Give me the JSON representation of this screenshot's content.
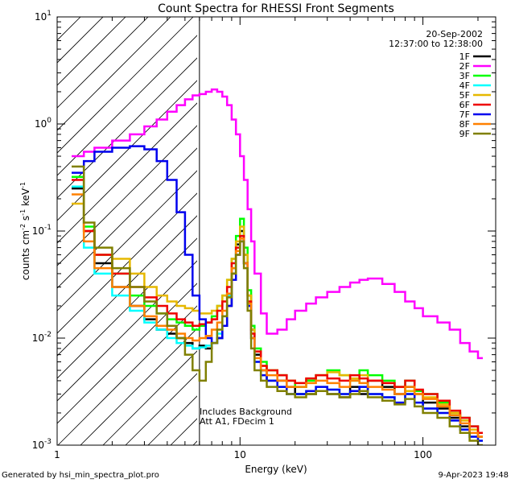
{
  "chart_data": {
    "type": "line",
    "title": "Count Spectra for RHESSI Front Segments",
    "xlabel": "Energy (keV)",
    "ylabel": "counts cm",
    "ylabel_super1": "-2",
    "ylabel_mid": " s",
    "ylabel_super2": "-1",
    "ylabel_end": " keV",
    "ylabel_super3": "-1",
    "x_scale": "log",
    "y_scale": "log",
    "xlim": [
      1,
      250
    ],
    "ylim": [
      0.001,
      10
    ],
    "x_ticks": [
      {
        "value": 1,
        "label": "1"
      },
      {
        "value": 10,
        "label": "10"
      },
      {
        "value": 100,
        "label": "100"
      }
    ],
    "y_ticks": [
      {
        "value": 0.001,
        "base": "10",
        "exp": "-3"
      },
      {
        "value": 0.01,
        "base": "10",
        "exp": "-2"
      },
      {
        "value": 0.1,
        "base": "10",
        "exp": "-1"
      },
      {
        "value": 1,
        "base": "10",
        "exp": "0"
      },
      {
        "value": 10,
        "base": "10",
        "exp": "1"
      }
    ],
    "hatched_region_max_energy": 6,
    "annotation_date": "20-Sep-2002",
    "annotation_time": "12:37:00 to 12:38:00",
    "annotation_bg": "Includes Background",
    "annotation_att": "Att A1, FDecim 1",
    "series": [
      {
        "name": "1F",
        "color": "#000000",
        "energies": [
          1.2,
          1.4,
          1.6,
          2.0,
          2.5,
          3.0,
          3.5,
          4.0,
          4.5,
          5.0,
          5.5,
          6.0,
          6.5,
          7.0,
          7.5,
          8.0,
          8.5,
          9.0,
          9.5,
          10.0,
          10.5,
          11.0,
          11.5,
          12.0,
          13.0,
          14.0,
          16.0,
          18.0,
          20.0,
          23.0,
          26.0,
          30.0,
          35.0,
          40.0,
          45.0,
          50.0,
          60.0,
          70.0,
          80.0,
          90.0,
          100.0,
          120.0,
          140.0,
          160.0,
          180.0,
          200.0
        ],
        "values": [
          0.25,
          0.1,
          0.05,
          0.03,
          0.02,
          0.015,
          0.012,
          0.011,
          0.01,
          0.009,
          0.008,
          0.0085,
          0.008,
          0.009,
          0.01,
          0.013,
          0.02,
          0.04,
          0.075,
          0.1,
          0.06,
          0.025,
          0.012,
          0.007,
          0.005,
          0.004,
          0.004,
          0.0035,
          0.003,
          0.003,
          0.0032,
          0.003,
          0.0028,
          0.0035,
          0.003,
          0.004,
          0.0035,
          0.003,
          0.0035,
          0.003,
          0.0025,
          0.0022,
          0.0018,
          0.0015,
          0.0013,
          0.0012
        ]
      },
      {
        "name": "2F",
        "color": "#ff00ff",
        "energies": [
          1.2,
          1.4,
          1.6,
          2.0,
          2.5,
          3.0,
          3.5,
          4.0,
          4.5,
          5.0,
          5.5,
          6.0,
          6.5,
          7.0,
          7.5,
          8.0,
          8.5,
          9.0,
          9.5,
          10.0,
          10.5,
          11.0,
          11.5,
          12.0,
          13.0,
          14.0,
          16.0,
          18.0,
          20.0,
          23.0,
          26.0,
          30.0,
          35.0,
          40.0,
          45.0,
          50.0,
          60.0,
          70.0,
          80.0,
          90.0,
          100.0,
          120.0,
          140.0,
          160.0,
          180.0,
          200.0
        ],
        "values": [
          0.5,
          0.55,
          0.6,
          0.7,
          0.8,
          0.95,
          1.1,
          1.3,
          1.5,
          1.7,
          1.85,
          1.9,
          2.0,
          2.1,
          2.0,
          1.8,
          1.5,
          1.1,
          0.8,
          0.5,
          0.3,
          0.16,
          0.08,
          0.04,
          0.017,
          0.011,
          0.012,
          0.015,
          0.018,
          0.021,
          0.024,
          0.027,
          0.03,
          0.033,
          0.035,
          0.036,
          0.032,
          0.027,
          0.022,
          0.019,
          0.016,
          0.014,
          0.012,
          0.009,
          0.0075,
          0.0065
        ]
      },
      {
        "name": "3F",
        "color": "#00ff00",
        "energies": [
          1.2,
          1.4,
          1.6,
          2.0,
          2.5,
          3.0,
          3.5,
          4.0,
          4.5,
          5.0,
          5.5,
          6.0,
          6.5,
          7.0,
          7.5,
          8.0,
          8.5,
          9.0,
          9.5,
          10.0,
          10.5,
          11.0,
          11.5,
          12.0,
          13.0,
          14.0,
          16.0,
          18.0,
          20.0,
          23.0,
          26.0,
          30.0,
          35.0,
          40.0,
          45.0,
          50.0,
          60.0,
          70.0,
          80.0,
          90.0,
          100.0,
          120.0,
          140.0,
          160.0,
          180.0,
          200.0
        ],
        "values": [
          0.32,
          0.11,
          0.06,
          0.04,
          0.025,
          0.02,
          0.017,
          0.015,
          0.014,
          0.013,
          0.012,
          0.013,
          0.014,
          0.016,
          0.02,
          0.025,
          0.035,
          0.055,
          0.09,
          0.13,
          0.07,
          0.028,
          0.013,
          0.008,
          0.006,
          0.005,
          0.0045,
          0.004,
          0.0035,
          0.004,
          0.0045,
          0.005,
          0.0045,
          0.004,
          0.005,
          0.0045,
          0.004,
          0.0035,
          0.004,
          0.0032,
          0.003,
          0.0025,
          0.002,
          0.0018,
          0.0015,
          0.0013
        ]
      },
      {
        "name": "4F",
        "color": "#00ffff",
        "energies": [
          1.2,
          1.4,
          1.6,
          2.0,
          2.5,
          3.0,
          3.5,
          4.0,
          4.5,
          5.0,
          5.5,
          6.0,
          6.5,
          7.0,
          7.5,
          8.0,
          8.5,
          9.0,
          9.5,
          10.0,
          10.5,
          11.0,
          11.5,
          12.0,
          13.0,
          14.0,
          16.0,
          18.0,
          20.0,
          23.0,
          26.0,
          30.0,
          35.0,
          40.0,
          45.0,
          50.0,
          60.0,
          70.0,
          80.0,
          90.0,
          100.0,
          120.0,
          140.0,
          160.0,
          180.0,
          200.0
        ],
        "values": [
          0.26,
          0.07,
          0.04,
          0.025,
          0.018,
          0.014,
          0.012,
          0.01,
          0.009,
          0.0085,
          0.008,
          0.0082,
          0.0085,
          0.009,
          0.011,
          0.016,
          0.025,
          0.045,
          0.07,
          0.09,
          0.05,
          0.02,
          0.01,
          0.006,
          0.0045,
          0.004,
          0.0035,
          0.003,
          0.003,
          0.0032,
          0.0035,
          0.0033,
          0.003,
          0.0032,
          0.0035,
          0.003,
          0.0028,
          0.0025,
          0.003,
          0.0025,
          0.0022,
          0.002,
          0.0017,
          0.0014,
          0.0012,
          0.0011
        ]
      },
      {
        "name": "5F",
        "color": "#e6b800",
        "energies": [
          1.2,
          1.4,
          1.6,
          2.0,
          2.5,
          3.0,
          3.5,
          4.0,
          4.5,
          5.0,
          5.5,
          6.0,
          6.5,
          7.0,
          7.5,
          8.0,
          8.5,
          9.0,
          9.5,
          10.0,
          10.5,
          11.0,
          11.5,
          12.0,
          13.0,
          14.0,
          16.0,
          18.0,
          20.0,
          23.0,
          26.0,
          30.0,
          35.0,
          40.0,
          45.0,
          50.0,
          60.0,
          70.0,
          80.0,
          90.0,
          100.0,
          120.0,
          140.0,
          160.0,
          180.0,
          200.0
        ],
        "values": [
          0.18,
          0.1,
          0.06,
          0.055,
          0.04,
          0.03,
          0.025,
          0.022,
          0.02,
          0.019,
          0.018,
          0.017,
          0.017,
          0.018,
          0.02,
          0.025,
          0.035,
          0.055,
          0.08,
          0.11,
          0.06,
          0.025,
          0.012,
          0.0075,
          0.0055,
          0.005,
          0.0045,
          0.004,
          0.0038,
          0.0042,
          0.0045,
          0.0048,
          0.0045,
          0.0042,
          0.0045,
          0.004,
          0.0038,
          0.0035,
          0.0032,
          0.003,
          0.0028,
          0.0024,
          0.002,
          0.0017,
          0.0014,
          0.0012
        ]
      },
      {
        "name": "6F",
        "color": "#ee0000",
        "energies": [
          1.2,
          1.4,
          1.6,
          2.0,
          2.5,
          3.0,
          3.5,
          4.0,
          4.5,
          5.0,
          5.5,
          6.0,
          6.5,
          7.0,
          7.5,
          8.0,
          8.5,
          9.0,
          9.5,
          10.0,
          10.5,
          11.0,
          11.5,
          12.0,
          13.0,
          14.0,
          16.0,
          18.0,
          20.0,
          23.0,
          26.0,
          30.0,
          35.0,
          40.0,
          45.0,
          50.0,
          60.0,
          70.0,
          80.0,
          90.0,
          100.0,
          120.0,
          140.0,
          160.0,
          180.0,
          200.0
        ],
        "values": [
          0.3,
          0.1,
          0.06,
          0.04,
          0.03,
          0.024,
          0.02,
          0.017,
          0.015,
          0.014,
          0.013,
          0.0135,
          0.014,
          0.015,
          0.018,
          0.022,
          0.03,
          0.05,
          0.07,
          0.09,
          0.05,
          0.022,
          0.011,
          0.0075,
          0.0055,
          0.005,
          0.0045,
          0.004,
          0.0038,
          0.0042,
          0.0045,
          0.0042,
          0.004,
          0.0045,
          0.0042,
          0.004,
          0.0038,
          0.0035,
          0.004,
          0.0033,
          0.003,
          0.0026,
          0.0021,
          0.0018,
          0.0015,
          0.0013
        ]
      },
      {
        "name": "7F",
        "color": "#0000ee",
        "energies": [
          1.2,
          1.4,
          1.6,
          2.0,
          2.5,
          3.0,
          3.5,
          4.0,
          4.5,
          5.0,
          5.5,
          6.0,
          6.5,
          7.0,
          7.5,
          8.0,
          8.5,
          9.0,
          9.5,
          10.0,
          10.5,
          11.0,
          11.5,
          12.0,
          13.0,
          14.0,
          16.0,
          18.0,
          20.0,
          23.0,
          26.0,
          30.0,
          35.0,
          40.0,
          45.0,
          50.0,
          60.0,
          70.0,
          80.0,
          90.0,
          100.0,
          120.0,
          140.0,
          160.0,
          180.0,
          200.0
        ],
        "values": [
          0.35,
          0.45,
          0.55,
          0.6,
          0.62,
          0.58,
          0.45,
          0.3,
          0.15,
          0.06,
          0.025,
          0.015,
          0.01,
          0.009,
          0.01,
          0.013,
          0.02,
          0.035,
          0.06,
          0.08,
          0.05,
          0.02,
          0.01,
          0.006,
          0.0045,
          0.004,
          0.0035,
          0.003,
          0.003,
          0.0032,
          0.0035,
          0.0033,
          0.003,
          0.0032,
          0.0035,
          0.003,
          0.0028,
          0.0025,
          0.003,
          0.0025,
          0.0022,
          0.002,
          0.0017,
          0.0014,
          0.0012,
          0.0011
        ]
      },
      {
        "name": "8F",
        "color": "#ff8000",
        "energies": [
          1.2,
          1.4,
          1.6,
          2.0,
          2.5,
          3.0,
          3.5,
          4.0,
          4.5,
          5.0,
          5.5,
          6.0,
          6.5,
          7.0,
          7.5,
          8.0,
          8.5,
          9.0,
          9.5,
          10.0,
          10.5,
          11.0,
          11.5,
          12.0,
          13.0,
          14.0,
          16.0,
          18.0,
          20.0,
          23.0,
          26.0,
          30.0,
          35.0,
          40.0,
          45.0,
          50.0,
          60.0,
          70.0,
          80.0,
          90.0,
          100.0,
          120.0,
          140.0,
          160.0,
          180.0,
          200.0
        ],
        "values": [
          0.22,
          0.08,
          0.045,
          0.03,
          0.02,
          0.016,
          0.013,
          0.012,
          0.011,
          0.01,
          0.0095,
          0.01,
          0.0105,
          0.012,
          0.014,
          0.018,
          0.026,
          0.045,
          0.065,
          0.085,
          0.05,
          0.021,
          0.01,
          0.0065,
          0.005,
          0.0045,
          0.004,
          0.0035,
          0.0035,
          0.0038,
          0.004,
          0.0038,
          0.0035,
          0.004,
          0.0038,
          0.0035,
          0.0033,
          0.003,
          0.0035,
          0.003,
          0.0027,
          0.0023,
          0.0019,
          0.0016,
          0.0013,
          0.0012
        ]
      },
      {
        "name": "9F",
        "color": "#808000",
        "energies": [
          1.2,
          1.4,
          1.6,
          2.0,
          2.5,
          3.0,
          3.5,
          4.0,
          4.5,
          5.0,
          5.5,
          6.0,
          6.5,
          7.0,
          7.5,
          8.0,
          8.5,
          9.0,
          9.5,
          10.0,
          10.5,
          11.0,
          11.5,
          12.0,
          13.0,
          14.0,
          16.0,
          18.0,
          20.0,
          23.0,
          26.0,
          30.0,
          35.0,
          40.0,
          45.0,
          50.0,
          60.0,
          70.0,
          80.0,
          90.0,
          100.0,
          120.0,
          140.0,
          160.0,
          180.0,
          200.0
        ],
        "values": [
          0.4,
          0.12,
          0.07,
          0.045,
          0.03,
          0.022,
          0.017,
          0.013,
          0.01,
          0.007,
          0.005,
          0.004,
          0.006,
          0.009,
          0.012,
          0.016,
          0.024,
          0.04,
          0.06,
          0.08,
          0.045,
          0.018,
          0.008,
          0.005,
          0.004,
          0.0035,
          0.0032,
          0.003,
          0.0028,
          0.003,
          0.0032,
          0.003,
          0.0028,
          0.003,
          0.0032,
          0.0028,
          0.0026,
          0.0024,
          0.0027,
          0.0023,
          0.002,
          0.0018,
          0.0015,
          0.0013,
          0.0011,
          0.001
        ]
      }
    ]
  },
  "footer": {
    "left": "Generated by hsi_min_spectra_plot.pro",
    "right": "9-Apr-2023 19:48"
  }
}
